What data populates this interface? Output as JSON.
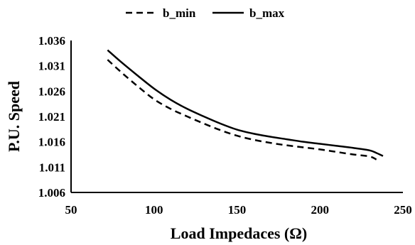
{
  "chart_data": {
    "type": "line",
    "xlabel": "Load Impedaces (Ω)",
    "ylabel": "P.U. Speed",
    "xlim": [
      50,
      250
    ],
    "ylim": [
      1.006,
      1.036
    ],
    "x_ticks": [
      "50",
      "100",
      "150",
      "200",
      "250"
    ],
    "y_ticks": [
      "1.006",
      "1.011",
      "1.016",
      "1.021",
      "1.026",
      "1.031",
      "1.036"
    ],
    "grid": false,
    "legend_position": "top-center",
    "series": [
      {
        "name": "b_min",
        "style": "dashed",
        "color": "#000000",
        "x": [
          72,
          80,
          90,
          100,
          110,
          120,
          130,
          140,
          150,
          160,
          170,
          180,
          190,
          200,
          210,
          220,
          230,
          234
        ],
        "y": [
          1.0322,
          1.0298,
          1.027,
          1.0244,
          1.0225,
          1.021,
          1.0196,
          1.0183,
          1.0172,
          1.0164,
          1.0158,
          1.0153,
          1.0149,
          1.0145,
          1.014,
          1.0135,
          1.0131,
          1.0125
        ]
      },
      {
        "name": "b_max",
        "style": "solid",
        "color": "#000000",
        "x": [
          72,
          80,
          90,
          100,
          110,
          120,
          130,
          140,
          150,
          160,
          170,
          180,
          190,
          200,
          210,
          220,
          230,
          234,
          238
        ],
        "y": [
          1.0341,
          1.0318,
          1.0291,
          1.0265,
          1.0243,
          1.0225,
          1.021,
          1.0196,
          1.0184,
          1.0176,
          1.017,
          1.0165,
          1.016,
          1.0156,
          1.0152,
          1.0148,
          1.0143,
          1.0138,
          1.0132
        ]
      }
    ]
  }
}
